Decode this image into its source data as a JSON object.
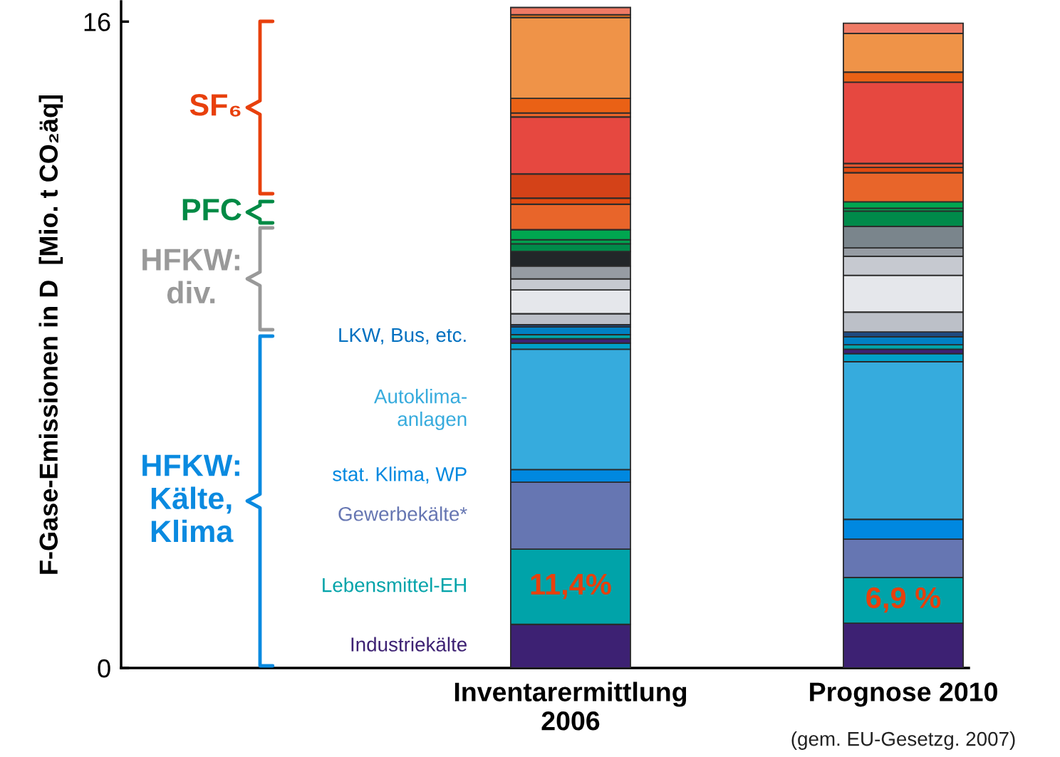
{
  "chart_data": {
    "type": "bar",
    "stacked": true,
    "categories": [
      "Inventarermittlung\n2006",
      "Prognose 2010"
    ],
    "ylabel": "F-Gase-Emissionen in D  [Mio. t CO₂äq]",
    "ylim": [
      0,
      16.5
    ],
    "yticks": [
      0,
      16
    ],
    "grid": false,
    "series": [
      {
        "name": "Industriekälte",
        "color": "#3d2173",
        "values": [
          1.08,
          1.11
        ]
      },
      {
        "name": "Lebensmittel-EH",
        "color": "#00a3a9",
        "values": [
          1.86,
          1.13
        ]
      },
      {
        "name": "Gewerbekälte*",
        "color": "#6676b2",
        "values": [
          1.66,
          0.95
        ]
      },
      {
        "name": "stat. Klima, WP",
        "color": "#0088e0",
        "values": [
          0.31,
          0.49
        ]
      },
      {
        "name": "Autoklima-\nanlagen",
        "color": "#36abdd",
        "values": [
          2.98,
          3.9
        ]
      },
      {
        "color": "#00a0c8",
        "values": [
          0.15,
          0.2
        ]
      },
      {
        "color": "#3d2173",
        "values": [
          0.11,
          0.11
        ]
      },
      {
        "color": "#00a3a9",
        "values": [
          0.1,
          0.11
        ]
      },
      {
        "color": "#0080c4",
        "values": [
          0.19,
          0.2
        ]
      },
      {
        "color": "#1f4a80",
        "values": [
          0.06,
          0.12
        ]
      },
      {
        "color": "#bcc0c8",
        "values": [
          0.27,
          0.49
        ]
      },
      {
        "color": "#e5e7eb",
        "values": [
          0.59,
          0.91
        ]
      },
      {
        "color": "#c6c9d0",
        "values": [
          0.27,
          0.47
        ]
      },
      {
        "color": "#969ca3",
        "values": [
          0.32,
          0.21
        ]
      },
      {
        "color": "#222629",
        "values": [
          0.36,
          null
        ]
      },
      {
        "color": "#7a858c",
        "values": [
          null,
          0.53
        ]
      },
      {
        "color": "#008a4a",
        "values": [
          0.19,
          0.38
        ]
      },
      {
        "color": "#00a04f",
        "values": [
          0.1,
          0.07
        ]
      },
      {
        "color": "#00a650",
        "values": [
          0.25,
          0.16
        ]
      },
      {
        "color": "#e8652a",
        "values": [
          0.63,
          0.72
        ]
      },
      {
        "color": "#e04a10",
        "values": [
          0.15,
          0.13
        ]
      },
      {
        "color": "#d44218",
        "values": [
          0.6,
          null
        ]
      },
      {
        "color": "#e05530",
        "values": [
          null,
          0.1
        ]
      },
      {
        "color": "#e64840",
        "values": [
          1.41,
          2.01
        ]
      },
      {
        "color": "#e8652a",
        "values": [
          0.1,
          null
        ]
      },
      {
        "color": "#ea6115",
        "values": [
          0.36,
          0.25
        ]
      },
      {
        "color": "#ef9348",
        "values": [
          2.0,
          0.96
        ]
      },
      {
        "color": "#e0701e",
        "values": [
          0.07,
          null
        ]
      },
      {
        "color": "#ef7a65",
        "values": [
          0.18,
          0.25
        ]
      }
    ],
    "annotations": [
      "LKW, Bus, etc.",
      "(gem. EU-Gesetzg. 2007)",
      "11,4%",
      "6,9 %",
      "SF₆",
      "PFC",
      "HFKW:\ndiv.",
      "HFKW:\nKälte,\nKlima"
    ]
  }
}
